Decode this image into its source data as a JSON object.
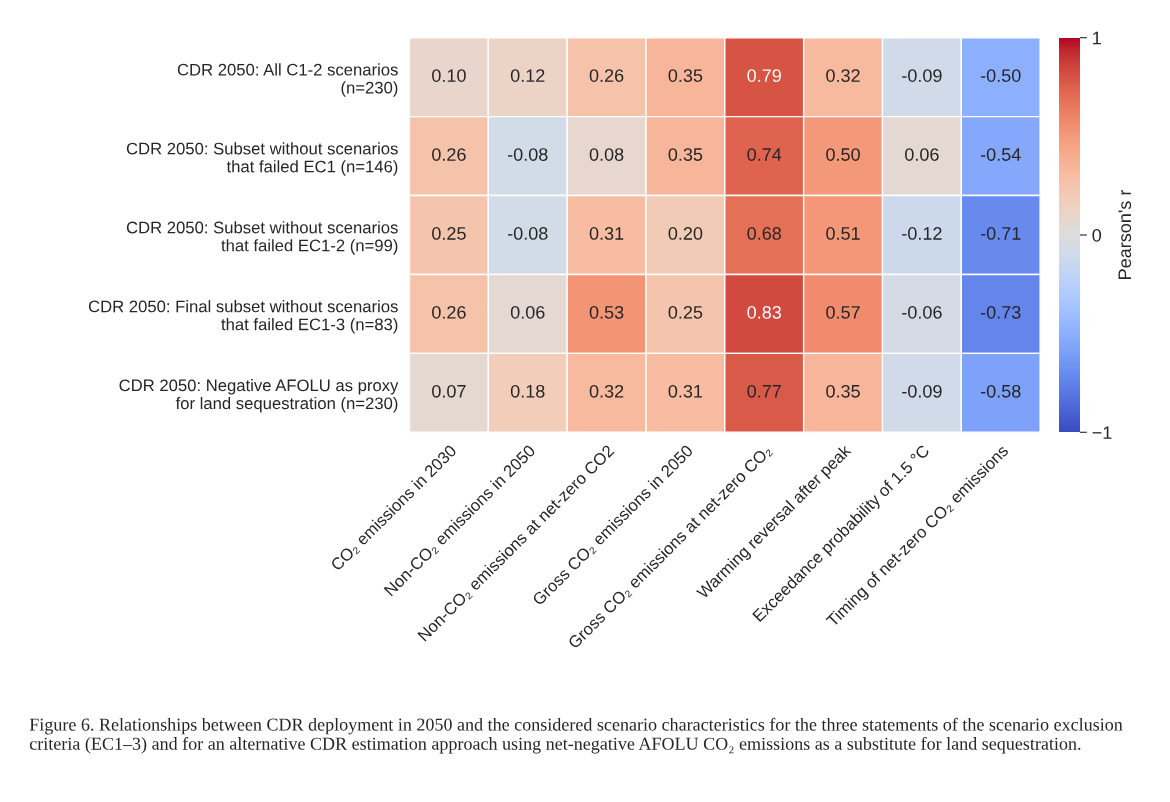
{
  "chart_data": {
    "type": "heatmap",
    "categories": [
      "CO₂ emissions in 2030",
      "Non-CO₂ emissions in 2050",
      "Non-CO₂ emissions at net-zero CO2",
      "Gross CO₂ emissions in 2050",
      "Gross CO₂ emissions at net-zero CO₂",
      "Warming reversal after peak",
      "Exceedance probability of 1.5 °C",
      "Timing of net-zero CO₂ emissions"
    ],
    "y_categories": [
      "CDR 2050: All C1-2 scenarios\n(n=230)",
      "CDR 2050: Subset without scenarios\nthat failed EC1 (n=146)",
      "CDR 2050: Subset without scenarios\nthat failed EC1-2 (n=99)",
      "CDR 2050: Final subset without scenarios\nthat failed EC1-3 (n=83)",
      "CDR 2050: Negative AFOLU as proxy\nfor land sequestration (n=230)"
    ],
    "cells": [
      [
        0.1,
        0.12,
        0.26,
        0.35,
        0.79,
        0.32,
        -0.09,
        -0.5
      ],
      [
        0.26,
        -0.08,
        0.08,
        0.35,
        0.74,
        0.5,
        0.06,
        -0.54
      ],
      [
        0.25,
        -0.08,
        0.31,
        0.2,
        0.68,
        0.51,
        -0.12,
        -0.71
      ],
      [
        0.26,
        0.06,
        0.53,
        0.25,
        0.83,
        0.57,
        -0.06,
        -0.73
      ],
      [
        0.07,
        0.18,
        0.32,
        0.31,
        0.77,
        0.35,
        -0.09,
        -0.58
      ]
    ],
    "cell_labels": [
      [
        "0.10",
        "0.12",
        "0.26",
        "0.35",
        "0.79",
        "0.32",
        "-0.09",
        "-0.50"
      ],
      [
        "0.26",
        "-0.08",
        "0.08",
        "0.35",
        "0.74",
        "0.50",
        "0.06",
        "-0.54"
      ],
      [
        "0.25",
        "-0.08",
        "0.31",
        "0.20",
        "0.68",
        "0.51",
        "-0.12",
        "-0.71"
      ],
      [
        "0.26",
        "0.06",
        "0.53",
        "0.25",
        "0.83",
        "0.57",
        "-0.06",
        "-0.73"
      ],
      [
        "0.07",
        "0.18",
        "0.32",
        "0.31",
        "0.77",
        "0.35",
        "-0.09",
        "-0.58"
      ]
    ],
    "clim": [
      -1,
      1
    ],
    "cticks": [
      {
        "value": -1,
        "label": "−1"
      },
      0,
      1
    ],
    "clabel": "Pearson's r",
    "annotations": [
      "Figure 6. Relationships between CDR deployment in 2050 and the considered scenario characteristics for the three statements of the scenario exclusion criteria (EC1–3) and for an alternative CDR estimation approach using net-negative AFOLU CO₂ emissions as a substitute for land sequestration."
    ]
  }
}
